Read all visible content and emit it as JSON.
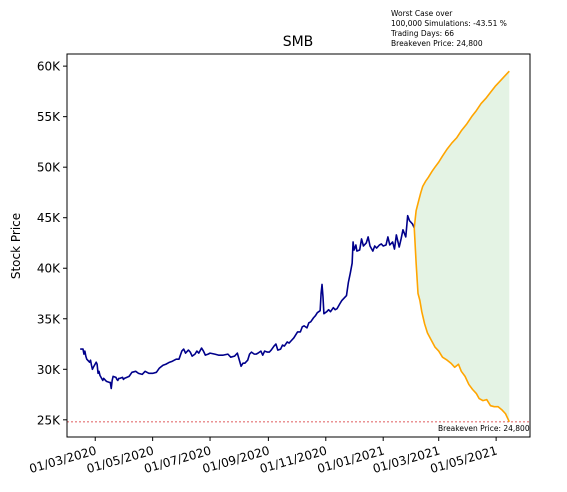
{
  "chart_data": {
    "type": "line",
    "title": "SMB",
    "ylabel": "Stock Price",
    "xlabel": "",
    "y_tick_labels": [
      "25K",
      "30K",
      "35K",
      "40K",
      "45K",
      "50K",
      "55K",
      "60K"
    ],
    "y_tick_values": [
      25000,
      30000,
      35000,
      40000,
      45000,
      50000,
      55000,
      60000
    ],
    "x_tick_labels": [
      "01/03/2020",
      "01/05/2020",
      "01/07/2020",
      "01/09/2020",
      "01/11/2020",
      "01/01/2021",
      "01/03/2021",
      "01/05/2021"
    ],
    "x_tick_values": [
      "2020-03-01",
      "2020-05-01",
      "2020-07-01",
      "2020-09-01",
      "2020-11-01",
      "2021-01-01",
      "2021-03-01",
      "2021-05-01"
    ],
    "x_range": [
      "2020-01-31",
      "2021-06-06"
    ],
    "ylim": [
      23300,
      61200
    ],
    "grid": false,
    "annotation_lines": [
      "Worst Case over",
      "100,000 Simulations: -43.51 %",
      "Trading Days: 66",
      "Breakeven Price: 24,800"
    ],
    "breakeven": {
      "value": 24800,
      "label": "Breakeven Price: 24,800",
      "color": "#d62728"
    },
    "colors": {
      "history": "#00008b",
      "projection": "#ffa500",
      "fill": "#2ca02c"
    },
    "series": [
      {
        "kind": "history",
        "points": [
          [
            "2020-02-14",
            32000
          ],
          [
            "2020-02-17",
            32000
          ],
          [
            "2020-02-18",
            31500
          ],
          [
            "2020-02-19",
            31800
          ],
          [
            "2020-02-20",
            31300
          ],
          [
            "2020-02-21",
            31000
          ],
          [
            "2020-02-24",
            30700
          ],
          [
            "2020-02-25",
            30900
          ],
          [
            "2020-02-26",
            30400
          ],
          [
            "2020-02-27",
            30000
          ],
          [
            "2020-02-28",
            30200
          ],
          [
            "2020-03-02",
            30700
          ],
          [
            "2020-03-03",
            30500
          ],
          [
            "2020-03-04",
            29600
          ],
          [
            "2020-03-05",
            29800
          ],
          [
            "2020-03-06",
            29400
          ],
          [
            "2020-03-09",
            28900
          ],
          [
            "2020-03-10",
            29100
          ],
          [
            "2020-03-11",
            29000
          ],
          [
            "2020-03-12",
            28900
          ],
          [
            "2020-03-13",
            28800
          ],
          [
            "2020-03-16",
            28700
          ],
          [
            "2020-03-17",
            28700
          ],
          [
            "2020-03-18",
            28100
          ],
          [
            "2020-03-19",
            28900
          ],
          [
            "2020-03-20",
            29300
          ],
          [
            "2020-03-23",
            29200
          ],
          [
            "2020-03-24",
            29000
          ],
          [
            "2020-03-25",
            28900
          ],
          [
            "2020-03-26",
            29100
          ],
          [
            "2020-03-27",
            29100
          ],
          [
            "2020-03-30",
            29200
          ],
          [
            "2020-03-31",
            29000
          ],
          [
            "2020-04-01",
            29100
          ],
          [
            "2020-04-06",
            29300
          ],
          [
            "2020-04-09",
            29700
          ],
          [
            "2020-04-13",
            29800
          ],
          [
            "2020-04-16",
            29600
          ],
          [
            "2020-04-20",
            29500
          ],
          [
            "2020-04-23",
            29800
          ],
          [
            "2020-04-27",
            29600
          ],
          [
            "2020-05-01",
            29600
          ],
          [
            "2020-05-05",
            29700
          ],
          [
            "2020-05-08",
            30100
          ],
          [
            "2020-05-12",
            30400
          ],
          [
            "2020-05-15",
            30500
          ],
          [
            "2020-05-19",
            30700
          ],
          [
            "2020-05-22",
            30800
          ],
          [
            "2020-05-26",
            31000
          ],
          [
            "2020-05-29",
            31000
          ],
          [
            "2020-06-01",
            31800
          ],
          [
            "2020-06-03",
            32000
          ],
          [
            "2020-06-05",
            31600
          ],
          [
            "2020-06-08",
            31900
          ],
          [
            "2020-06-10",
            31700
          ],
          [
            "2020-06-12",
            31300
          ],
          [
            "2020-06-15",
            31500
          ],
          [
            "2020-06-17",
            31800
          ],
          [
            "2020-06-19",
            31600
          ],
          [
            "2020-06-22",
            32100
          ],
          [
            "2020-06-24",
            31800
          ],
          [
            "2020-06-26",
            31400
          ],
          [
            "2020-06-29",
            31500
          ],
          [
            "2020-07-01",
            31600
          ],
          [
            "2020-07-06",
            31500
          ],
          [
            "2020-07-10",
            31400
          ],
          [
            "2020-07-15",
            31400
          ],
          [
            "2020-07-20",
            31500
          ],
          [
            "2020-07-23",
            31200
          ],
          [
            "2020-07-27",
            31300
          ],
          [
            "2020-07-30",
            31600
          ],
          [
            "2020-08-03",
            30300
          ],
          [
            "2020-08-05",
            30600
          ],
          [
            "2020-08-07",
            30600
          ],
          [
            "2020-08-10",
            30900
          ],
          [
            "2020-08-12",
            31500
          ],
          [
            "2020-08-14",
            31700
          ],
          [
            "2020-08-17",
            31500
          ],
          [
            "2020-08-19",
            31500
          ],
          [
            "2020-08-21",
            31600
          ],
          [
            "2020-08-24",
            31800
          ],
          [
            "2020-08-26",
            31400
          ],
          [
            "2020-08-28",
            31800
          ],
          [
            "2020-08-31",
            31700
          ],
          [
            "2020-09-02",
            31700
          ],
          [
            "2020-09-04",
            31900
          ],
          [
            "2020-09-07",
            32300
          ],
          [
            "2020-09-09",
            32500
          ],
          [
            "2020-09-11",
            31900
          ],
          [
            "2020-09-14",
            32000
          ],
          [
            "2020-09-16",
            32400
          ],
          [
            "2020-09-18",
            32300
          ],
          [
            "2020-09-21",
            32700
          ],
          [
            "2020-09-23",
            32600
          ],
          [
            "2020-09-25",
            32800
          ],
          [
            "2020-09-28",
            33100
          ],
          [
            "2020-09-30",
            33400
          ],
          [
            "2020-10-02",
            33700
          ],
          [
            "2020-10-05",
            33700
          ],
          [
            "2020-10-07",
            34200
          ],
          [
            "2020-10-09",
            34300
          ],
          [
            "2020-10-12",
            34100
          ],
          [
            "2020-10-14",
            34600
          ],
          [
            "2020-10-16",
            34700
          ],
          [
            "2020-10-19",
            35100
          ],
          [
            "2020-10-21",
            35300
          ],
          [
            "2020-10-23",
            35600
          ],
          [
            "2020-10-26",
            35800
          ],
          [
            "2020-10-27",
            37500
          ],
          [
            "2020-10-28",
            38400
          ],
          [
            "2020-10-29",
            37200
          ],
          [
            "2020-10-30",
            35500
          ],
          [
            "2020-11-02",
            35700
          ],
          [
            "2020-11-04",
            35900
          ],
          [
            "2020-11-06",
            35700
          ],
          [
            "2020-11-09",
            36100
          ],
          [
            "2020-11-11",
            35900
          ],
          [
            "2020-11-13",
            36000
          ],
          [
            "2020-11-16",
            36500
          ],
          [
            "2020-11-18",
            36800
          ],
          [
            "2020-11-20",
            37000
          ],
          [
            "2020-11-23",
            37300
          ],
          [
            "2020-11-25",
            38600
          ],
          [
            "2020-11-27",
            39500
          ],
          [
            "2020-11-29",
            40500
          ],
          [
            "2020-11-30",
            42600
          ],
          [
            "2020-12-01",
            41800
          ],
          [
            "2020-12-03",
            42300
          ],
          [
            "2020-12-04",
            41700
          ],
          [
            "2020-12-07",
            41800
          ],
          [
            "2020-12-09",
            42900
          ],
          [
            "2020-12-11",
            42200
          ],
          [
            "2020-12-14",
            42500
          ],
          [
            "2020-12-16",
            43100
          ],
          [
            "2020-12-18",
            42200
          ],
          [
            "2020-12-21",
            41700
          ],
          [
            "2020-12-23",
            42200
          ],
          [
            "2020-12-25",
            42000
          ],
          [
            "2020-12-28",
            42300
          ],
          [
            "2020-12-30",
            42400
          ],
          [
            "2021-01-01",
            42200
          ],
          [
            "2021-01-04",
            42300
          ],
          [
            "2021-01-06",
            43100
          ],
          [
            "2021-01-08",
            42300
          ],
          [
            "2021-01-11",
            42600
          ],
          [
            "2021-01-13",
            41900
          ],
          [
            "2021-01-15",
            43300
          ],
          [
            "2021-01-18",
            42100
          ],
          [
            "2021-01-20",
            42900
          ],
          [
            "2021-01-22",
            43800
          ],
          [
            "2021-01-25",
            43100
          ],
          [
            "2021-01-27",
            45200
          ],
          [
            "2021-01-29",
            44700
          ],
          [
            "2021-02-01",
            44400
          ],
          [
            "2021-02-03",
            44000
          ]
        ]
      },
      {
        "kind": "projection-upper",
        "points": [
          [
            "2021-02-03",
            44000
          ],
          [
            "2021-02-05",
            45700
          ],
          [
            "2021-02-08",
            46800
          ],
          [
            "2021-02-10",
            47500
          ],
          [
            "2021-02-12",
            48100
          ],
          [
            "2021-02-15",
            48600
          ],
          [
            "2021-02-18",
            49000
          ],
          [
            "2021-02-22",
            49600
          ],
          [
            "2021-02-25",
            50000
          ],
          [
            "2021-03-01",
            50500
          ],
          [
            "2021-03-05",
            51100
          ],
          [
            "2021-03-10",
            51800
          ],
          [
            "2021-03-15",
            52400
          ],
          [
            "2021-03-20",
            52900
          ],
          [
            "2021-03-25",
            53600
          ],
          [
            "2021-03-31",
            54300
          ],
          [
            "2021-04-05",
            55000
          ],
          [
            "2021-04-10",
            55600
          ],
          [
            "2021-04-15",
            56300
          ],
          [
            "2021-04-20",
            56800
          ],
          [
            "2021-04-25",
            57400
          ],
          [
            "2021-04-30",
            58000
          ],
          [
            "2021-05-05",
            58500
          ],
          [
            "2021-05-10",
            59000
          ],
          [
            "2021-05-13",
            59300
          ],
          [
            "2021-05-15",
            59500
          ]
        ]
      },
      {
        "kind": "projection-lower",
        "points": [
          [
            "2021-02-03",
            44000
          ],
          [
            "2021-02-05",
            40500
          ],
          [
            "2021-02-07",
            37500
          ],
          [
            "2021-02-09",
            36800
          ],
          [
            "2021-02-11",
            35700
          ],
          [
            "2021-02-14",
            34500
          ],
          [
            "2021-02-17",
            33600
          ],
          [
            "2021-02-21",
            32900
          ],
          [
            "2021-02-25",
            32200
          ],
          [
            "2021-03-01",
            31800
          ],
          [
            "2021-03-05",
            31200
          ],
          [
            "2021-03-10",
            30900
          ],
          [
            "2021-03-14",
            30600
          ],
          [
            "2021-03-18",
            30200
          ],
          [
            "2021-03-22",
            30500
          ],
          [
            "2021-03-25",
            29800
          ],
          [
            "2021-03-29",
            29300
          ],
          [
            "2021-04-02",
            28500
          ],
          [
            "2021-04-06",
            28000
          ],
          [
            "2021-04-10",
            27600
          ],
          [
            "2021-04-13",
            27100
          ],
          [
            "2021-04-17",
            26900
          ],
          [
            "2021-04-21",
            27000
          ],
          [
            "2021-04-25",
            26400
          ],
          [
            "2021-04-29",
            26300
          ],
          [
            "2021-05-03",
            26300
          ],
          [
            "2021-05-07",
            26000
          ],
          [
            "2021-05-11",
            25600
          ],
          [
            "2021-05-15",
            24800
          ]
        ]
      }
    ]
  }
}
